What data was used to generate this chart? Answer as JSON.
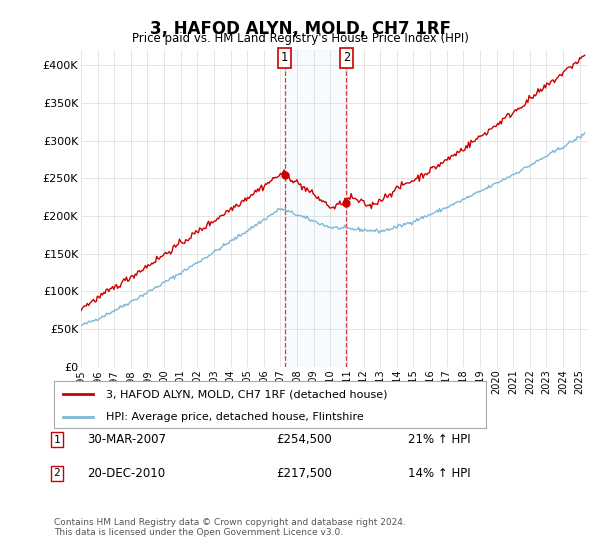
{
  "title": "3, HAFOD ALYN, MOLD, CH7 1RF",
  "subtitle": "Price paid vs. HM Land Registry's House Price Index (HPI)",
  "ylim": [
    0,
    420000
  ],
  "yticks": [
    0,
    50000,
    100000,
    150000,
    200000,
    250000,
    300000,
    350000,
    400000
  ],
  "ytick_labels": [
    "£0",
    "£50K",
    "£100K",
    "£150K",
    "£200K",
    "£250K",
    "£300K",
    "£350K",
    "£400K"
  ],
  "hpi_color": "#7ab8d9",
  "price_color": "#cc0000",
  "annotation1": {
    "label": "1",
    "date": "30-MAR-2007",
    "price": 254500,
    "pct": "21%",
    "dir": "↑"
  },
  "annotation2": {
    "label": "2",
    "date": "20-DEC-2010",
    "price": 217500,
    "pct": "14%",
    "dir": "↑"
  },
  "legend_line1": "3, HAFOD ALYN, MOLD, CH7 1RF (detached house)",
  "legend_line2": "HPI: Average price, detached house, Flintshire",
  "footer": "Contains HM Land Registry data © Crown copyright and database right 2024.\nThis data is licensed under the Open Government Licence v3.0.",
  "background_color": "#ffffff",
  "grid_color": "#e0e0e0",
  "t1_x": 2007.25,
  "t1_y": 254500,
  "t2_x": 2010.97,
  "t2_y": 217500,
  "xlim_left": 1995.0,
  "xlim_right": 2025.5
}
